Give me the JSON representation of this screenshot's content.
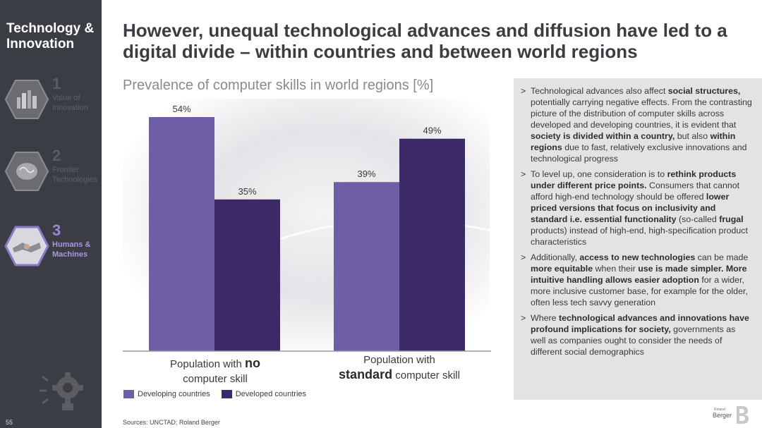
{
  "sidebar": {
    "title": "Technology & Innovation",
    "items": [
      {
        "number": "1",
        "label": "Value of Innovation",
        "active": false
      },
      {
        "number": "2",
        "label": "Frontier Technologies",
        "active": false
      },
      {
        "number": "3",
        "label": "Humans & Machines",
        "active": true
      }
    ],
    "page_number": "55",
    "icons": [
      "city-icon",
      "brain-icon",
      "handshake-icon",
      "lightbulb-gear-icon"
    ]
  },
  "headline": "However, unequal technological advances and diffusion have led to a digital divide – within countries and between world regions",
  "chart_title": "Prevalence of computer skills in world regions [%]",
  "category_labels": [
    {
      "pre": "Population with ",
      "bold": "no",
      "post": "computer skill"
    },
    {
      "pre": "Population with",
      "bold": "standard",
      "post": "computer skill"
    }
  ],
  "legend": [
    "Developing countries",
    "Developed countries"
  ],
  "source": "Sources: UNCTAD; Roland Berger",
  "chart_data": {
    "type": "bar",
    "title": "Prevalence of computer skills in world regions [%]",
    "categories": [
      "Population with no computer skill",
      "Population with standard computer skill"
    ],
    "series": [
      {
        "name": "Developing countries",
        "values": [
          54,
          39
        ],
        "color": "#6d5ea6"
      },
      {
        "name": "Developed countries",
        "values": [
          35,
          49
        ],
        "color": "#3b2a66"
      }
    ],
    "data_labels": [
      [
        "54%",
        "39%"
      ],
      [
        "35%",
        "49%"
      ]
    ],
    "ylim": [
      0,
      60
    ],
    "unit": "%",
    "grid": false,
    "legend_position": "bottom-left"
  },
  "bullets": [
    [
      {
        "t": "Technological advances also affect "
      },
      {
        "t": "social structures,",
        "b": true
      },
      {
        "t": " potentially carrying negative effects. From the contrasting picture of the distribution of computer skills across developed and developing countries, it is evident that "
      },
      {
        "t": "society is divided within a country,",
        "b": true
      },
      {
        "t": " but also "
      },
      {
        "t": "within regions",
        "b": true
      },
      {
        "t": " due to fast, relatively exclusive innovations and technological progress"
      }
    ],
    [
      {
        "t": "To level up, one consideration is to "
      },
      {
        "t": "rethink products under different price points.",
        "b": true
      },
      {
        "t": " Consumers that cannot afford high-end technology should be offered "
      },
      {
        "t": "lower priced versions that focus on inclusivity and standard i.e. essential functionality",
        "b": true
      },
      {
        "t": " (so-called "
      },
      {
        "t": "frugal",
        "b": true
      },
      {
        "t": " products) instead of high-end, high-specification product characteristics"
      }
    ],
    [
      {
        "t": "Additionally, "
      },
      {
        "t": "access to new technologies",
        "b": true
      },
      {
        "t": " can be made "
      },
      {
        "t": "more equitable",
        "b": true
      },
      {
        "t": " when their "
      },
      {
        "t": "use is made simpler. More intuitive handling allows easier adoption",
        "b": true
      },
      {
        "t": " for a wider, more inclusive customer base, for example for the older, often less tech savvy generation"
      }
    ],
    [
      {
        "t": "Where "
      },
      {
        "t": "technological advances and innovations have profound implications for society,",
        "b": true
      },
      {
        "t": " governments as well as companies ought to consider the needs of different social demographics"
      }
    ]
  ],
  "logo": {
    "small": "Roland",
    "main": "Berger"
  }
}
